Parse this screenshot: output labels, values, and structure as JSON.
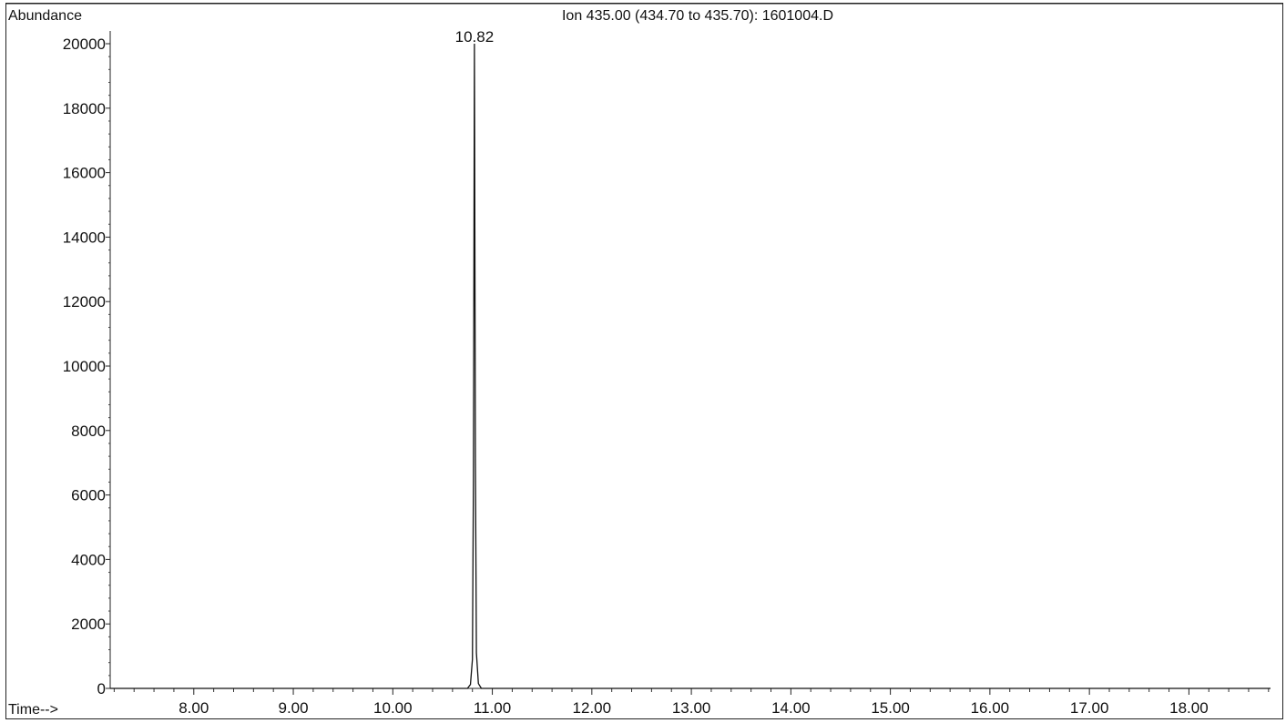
{
  "header": {
    "ion_title": "Ion 435.00 (434.70 to 435.70): 1601004.D"
  },
  "chart_data": {
    "type": "line",
    "ylabel": "Abundance",
    "xlabel": "Time-->",
    "xlim": [
      7.16,
      18.82
    ],
    "ylim": [
      0,
      20000
    ],
    "x_ticks": [
      8.0,
      9.0,
      10.0,
      11.0,
      12.0,
      13.0,
      14.0,
      15.0,
      16.0,
      17.0,
      18.0
    ],
    "x_tick_labels": [
      "8.00",
      "9.00",
      "10.00",
      "11.00",
      "12.00",
      "13.00",
      "14.00",
      "15.00",
      "16.00",
      "17.00",
      "18.00"
    ],
    "y_ticks": [
      0,
      2000,
      4000,
      6000,
      8000,
      10000,
      12000,
      14000,
      16000,
      18000,
      20000
    ],
    "y_tick_labels": [
      "0",
      "2000",
      "4000",
      "6000",
      "8000",
      "10000",
      "12000",
      "14000",
      "16000",
      "18000",
      "20000"
    ],
    "grid": false,
    "series": [
      {
        "x": [
          7.16,
          10.75,
          10.78,
          10.8,
          10.81,
          10.82,
          10.83,
          10.84,
          10.86,
          10.89,
          18.82
        ],
        "y": [
          0,
          0,
          120,
          900,
          6500,
          20000,
          7000,
          1100,
          150,
          0,
          0
        ]
      }
    ],
    "annotations": [
      {
        "x": 10.82,
        "y": 20000,
        "text": "10.82"
      }
    ]
  }
}
